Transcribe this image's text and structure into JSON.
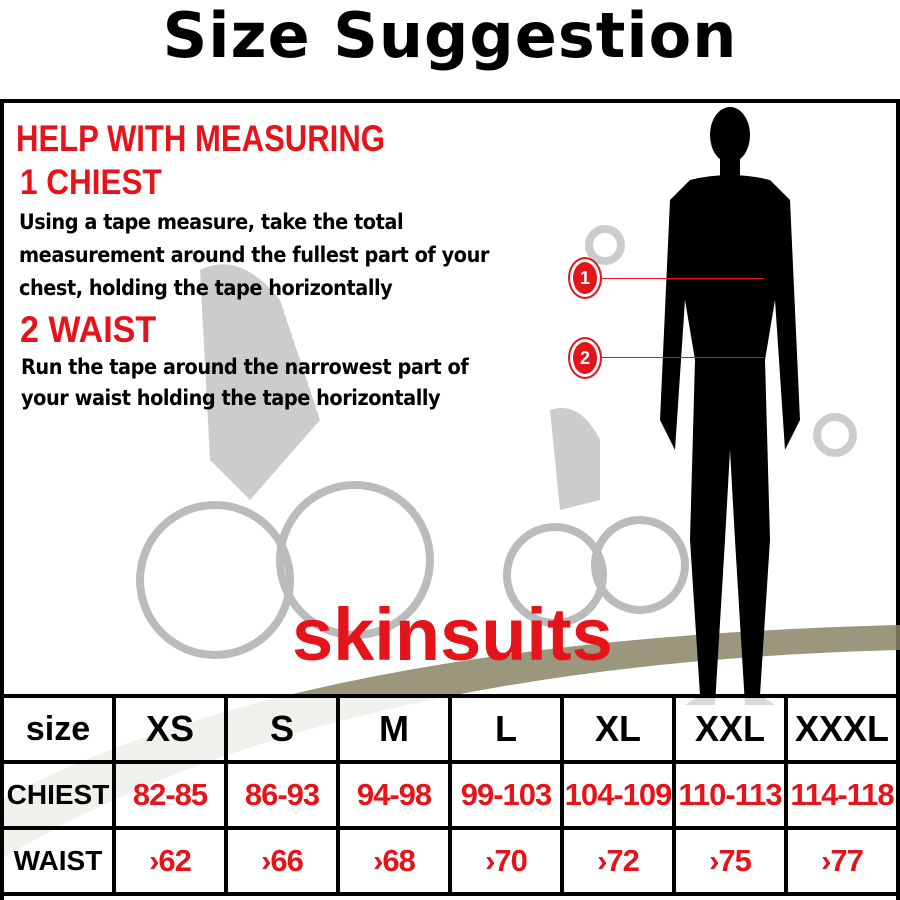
{
  "title": "Size Suggestion",
  "help": {
    "heading": "HELP WITH MEASURING",
    "chest_heading": "1  CHIEST",
    "chest_lines": [
      "Using a tape measure, take the total",
      "measurement around the fullest part of your",
      "chest, holding the tape horizontally"
    ],
    "waist_heading": "2  WAIST",
    "waist_lines": [
      "Run the tape around the narrowest part of",
      "your waist holding the tape horizontally"
    ]
  },
  "markers": [
    "1",
    "2"
  ],
  "brand": "skinsuits",
  "colors": {
    "accent": "#e5141b",
    "text": "#000000",
    "background_art": "#8a8566"
  },
  "table": {
    "header": [
      "size",
      "XS",
      "S",
      "M",
      "L",
      "XL",
      "XXL",
      "XXXL"
    ],
    "rows": [
      {
        "label": "CHIEST",
        "values": [
          "82-85",
          "86-93",
          "94-98",
          "99-103",
          "104-109",
          "110-113",
          "114-118"
        ]
      },
      {
        "label": "WAIST",
        "values": [
          "›62",
          "›66",
          "›68",
          "›70",
          "›72",
          "›75",
          "›77"
        ]
      }
    ]
  }
}
